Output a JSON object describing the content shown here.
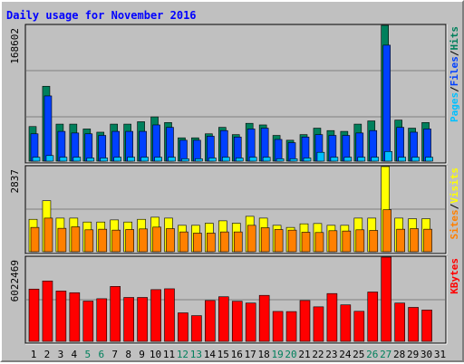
{
  "chart_data": {
    "type": "bar",
    "title": "Daily usage for November 2016",
    "days": [
      "1",
      "2",
      "3",
      "4",
      "5",
      "6",
      "7",
      "8",
      "9",
      "10",
      "11",
      "12",
      "13",
      "14",
      "15",
      "16",
      "17",
      "18",
      "19",
      "20",
      "21",
      "22",
      "23",
      "24",
      "25",
      "26",
      "27",
      "28",
      "29",
      "30",
      "31"
    ],
    "weekend_days": [
      "5",
      "6",
      "12",
      "13",
      "19",
      "20",
      "26",
      "27"
    ],
    "panels": {
      "hits_files_pages": {
        "max_label": "168602",
        "ymax": 168602,
        "legend": [
          "Pages",
          "/",
          "Files",
          "/",
          "Hits"
        ],
        "series": [
          {
            "name": "Hits",
            "color": "#00805c",
            "values": [
              43000,
              93000,
              46000,
              46000,
              40000,
              36000,
              46000,
              46000,
              49000,
              55000,
              48000,
              29000,
              29000,
              34000,
              42000,
              33000,
              47000,
              45000,
              32000,
              26000,
              33000,
              41000,
              38000,
              37000,
              46000,
              50000,
              168602,
              51000,
              41000,
              48000,
              0
            ]
          },
          {
            "name": "Files",
            "color": "#0040ff",
            "values": [
              34000,
              81000,
              37000,
              35000,
              34000,
              32000,
              37000,
              37000,
              37000,
              45000,
              42000,
              26000,
              26000,
              31000,
              38000,
              30000,
              40000,
              41000,
              27000,
              23000,
              30000,
              33000,
              32000,
              32000,
              35000,
              38000,
              144000,
              42000,
              36000,
              40000,
              0
            ]
          },
          {
            "name": "Pages",
            "color": "#00c0ff",
            "values": [
              5000,
              7000,
              5000,
              5000,
              4000,
              4000,
              5000,
              5000,
              5000,
              5000,
              5000,
              3000,
              3000,
              4000,
              5000,
              4000,
              5000,
              5000,
              3000,
              3000,
              4000,
              11000,
              5000,
              5000,
              5000,
              5000,
              12000,
              5000,
              5000,
              5000,
              0
            ]
          }
        ]
      },
      "visits_sites": {
        "max_label": "2837",
        "ymax": 2837,
        "legend": [
          "Sites",
          "/",
          "Visits"
        ],
        "series": [
          {
            "name": "Visits",
            "color": "#ffff00",
            "values": [
              1080,
              1700,
              1120,
              1120,
              990,
              990,
              1060,
              990,
              1080,
              1150,
              1120,
              880,
              880,
              950,
              1030,
              950,
              1180,
              1120,
              880,
              810,
              930,
              940,
              880,
              880,
              1120,
              1120,
              2837,
              1120,
              1100,
              1100,
              0
            ]
          },
          {
            "name": "Sites",
            "color": "#ff8000",
            "values": [
              810,
              1120,
              780,
              830,
              730,
              750,
              720,
              740,
              760,
              820,
              770,
              660,
              620,
              620,
              660,
              660,
              880,
              800,
              740,
              720,
              650,
              640,
              700,
              690,
              730,
              710,
              1400,
              750,
              770,
              750,
              0
            ]
          }
        ]
      },
      "kbytes": {
        "max_label": "6022469",
        "ymax": 6022469,
        "legend": [
          "KBytes"
        ],
        "series": [
          {
            "name": "KBytes",
            "color": "#ff0000",
            "values": [
              3740000,
              4320000,
              3600000,
              3480000,
              2880000,
              3050000,
              3930000,
              3140000,
              3140000,
              3700000,
              3760000,
              2040000,
              1840000,
              2920000,
              3190000,
              2870000,
              2740000,
              3290000,
              2140000,
              2130000,
              2920000,
              2470000,
              3420000,
              2610000,
              2150000,
              3530000,
              6022469,
              2740000,
              2430000,
              2240000,
              0
            ]
          }
        ]
      }
    }
  }
}
